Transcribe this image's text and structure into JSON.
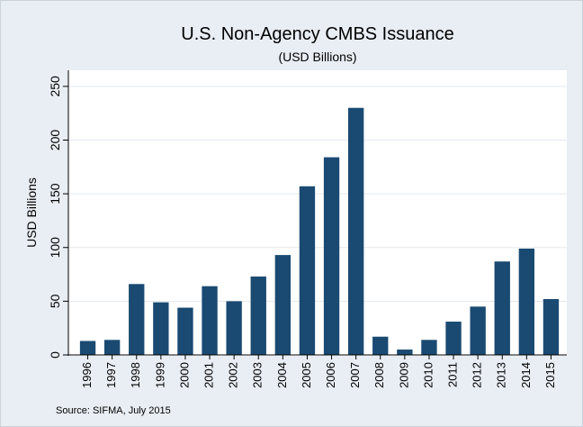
{
  "chart_data": {
    "type": "bar",
    "title": "U.S. Non-Agency CMBS Issuance",
    "subtitle": "(USD Billions)",
    "y_label": "USD Billions",
    "source": "Source: SIFMA, July 2015",
    "categories": [
      "1996",
      "1997",
      "1998",
      "1999",
      "2000",
      "2001",
      "2002",
      "2003",
      "2004",
      "2005",
      "2006",
      "2007",
      "2008",
      "2009",
      "2010",
      "2011",
      "2012",
      "2013",
      "2014",
      "2015"
    ],
    "values": [
      13,
      14,
      66,
      49,
      44,
      64,
      50,
      73,
      93,
      157,
      184,
      230,
      17,
      5,
      14,
      31,
      45,
      87,
      99,
      52
    ],
    "color": "#1a4a72",
    "ylim": [
      0,
      265
    ],
    "yticks": [
      0,
      50,
      100,
      150,
      200,
      250
    ],
    "grid": true
  }
}
